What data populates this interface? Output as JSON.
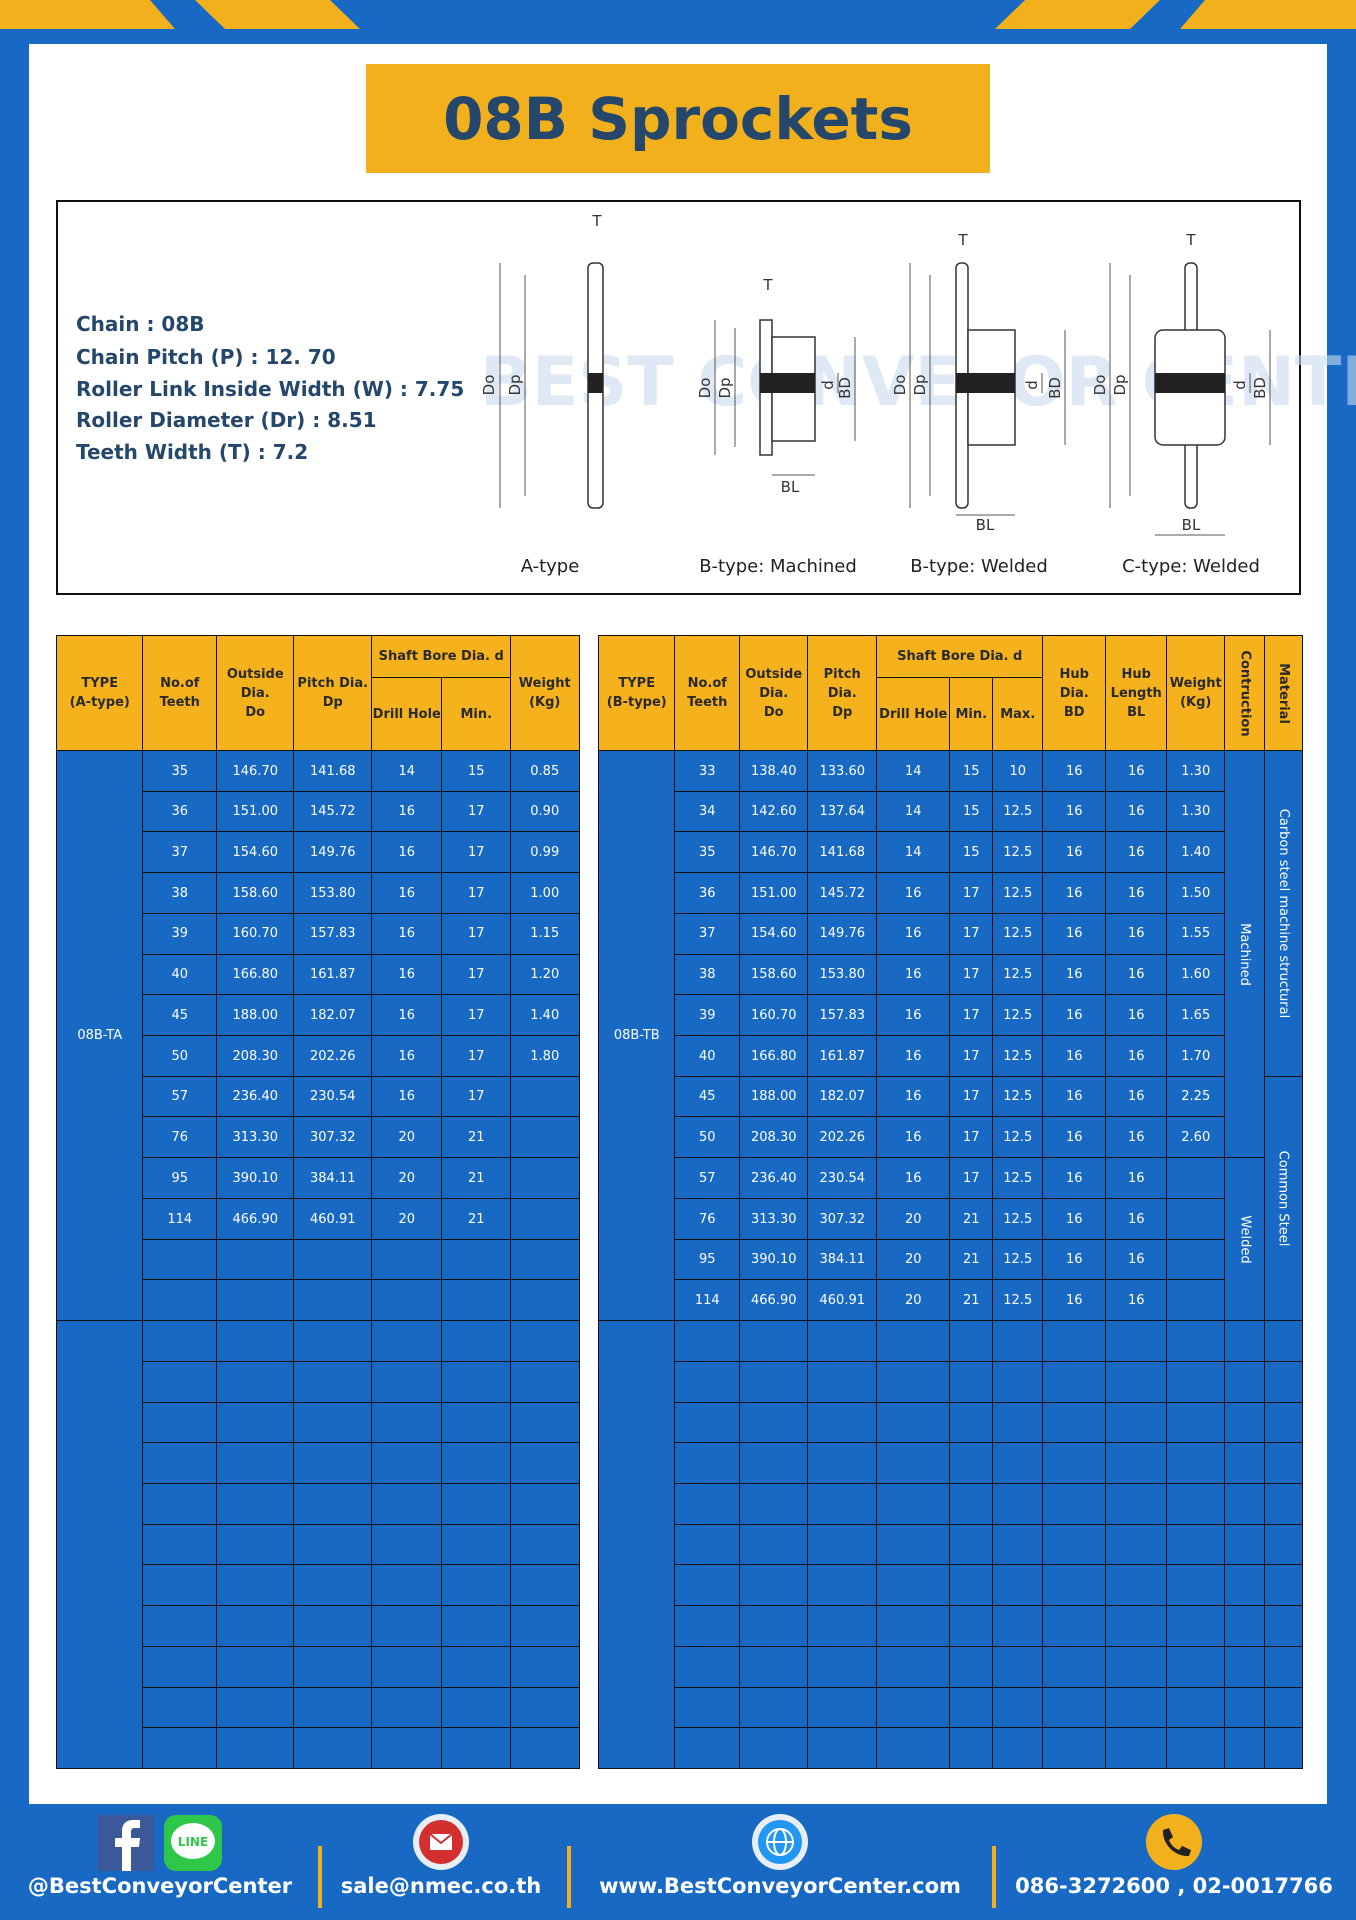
{
  "header": {
    "title": "08B Sprockets"
  },
  "specs": [
    "Chain : 08B",
    "Chain Pitch (P) : 12. 70",
    "Roller Link Inside Width (W) : 7.75",
    "Roller Diameter (Dr) : 8.51",
    "Teeth Width (T) : 7.2"
  ],
  "diagram": {
    "watermark": "BEST CONVEYOR CENTER",
    "dimensions": [
      "T",
      "Do",
      "Dp",
      "d",
      "BD",
      "BL"
    ],
    "captions": [
      "A-type",
      "B-type: Machined",
      "B-type: Welded",
      "C-type: Welded"
    ]
  },
  "table_a": {
    "headers": [
      "TYPE\n(A-type)",
      "No.of\nTeeth",
      "Outside\nDia.\nDo",
      "Pitch Dia.\nDp",
      "Shaft Bore Dia. d",
      "Drill Hole",
      "Min.",
      "Weight\n(Kg)"
    ],
    "type": "08B-TA",
    "rows": [
      [
        "35",
        "146.70",
        "141.68",
        "14",
        "15",
        "0.85"
      ],
      [
        "36",
        "151.00",
        "145.72",
        "16",
        "17",
        "0.90"
      ],
      [
        "37",
        "154.60",
        "149.76",
        "16",
        "17",
        "0.99"
      ],
      [
        "38",
        "158.60",
        "153.80",
        "16",
        "17",
        "1.00"
      ],
      [
        "39",
        "160.70",
        "157.83",
        "16",
        "17",
        "1.15"
      ],
      [
        "40",
        "166.80",
        "161.87",
        "16",
        "17",
        "1.20"
      ],
      [
        "45",
        "188.00",
        "182.07",
        "16",
        "17",
        "1.40"
      ],
      [
        "50",
        "208.30",
        "202.26",
        "16",
        "17",
        "1.80"
      ],
      [
        "57",
        "236.40",
        "230.54",
        "16",
        "17",
        null
      ],
      [
        "76",
        "313.30",
        "307.32",
        "20",
        "21",
        null
      ],
      [
        "95",
        "390.10",
        "384.11",
        "20",
        "21",
        null
      ],
      [
        "114",
        "466.90",
        "460.91",
        "20",
        "21",
        null
      ]
    ]
  },
  "table_b": {
    "headers": [
      "TYPE\n(B-type)",
      "No.of\nTeeth",
      "Outside\nDia.\nDo",
      "Pitch Dia.\nDp",
      "Shaft Bore Dia. d",
      "Drill Hole",
      "Min.",
      "Max.",
      "Hub Dia.\nBD",
      "Hub\nLength\nBL",
      "Weight\n(Kg)",
      "Contruction",
      "Material"
    ],
    "type": "08B-TB",
    "rows": [
      [
        "33",
        "138.40",
        "133.60",
        "14",
        "15",
        "10",
        "16",
        "16",
        "1.30"
      ],
      [
        "34",
        "142.60",
        "137.64",
        "14",
        "15",
        "12.5",
        "16",
        "16",
        "1.30"
      ],
      [
        "35",
        "146.70",
        "141.68",
        "14",
        "15",
        "12.5",
        "16",
        "16",
        "1.40"
      ],
      [
        "36",
        "151.00",
        "145.72",
        "16",
        "17",
        "12.5",
        "16",
        "16",
        "1.50"
      ],
      [
        "37",
        "154.60",
        "149.76",
        "16",
        "17",
        "12.5",
        "16",
        "16",
        "1.55"
      ],
      [
        "38",
        "158.60",
        "153.80",
        "16",
        "17",
        "12.5",
        "16",
        "16",
        "1.60"
      ],
      [
        "39",
        "160.70",
        "157.83",
        "16",
        "17",
        "12.5",
        "16",
        "16",
        "1.65"
      ],
      [
        "40",
        "166.80",
        "161.87",
        "16",
        "17",
        "12.5",
        "16",
        "16",
        "1.70"
      ],
      [
        "45",
        "188.00",
        "182.07",
        "16",
        "17",
        "12.5",
        "16",
        "16",
        "2.25"
      ],
      [
        "50",
        "208.30",
        "202.26",
        "16",
        "17",
        "12.5",
        "16",
        "16",
        "2.60"
      ],
      [
        "57",
        "236.40",
        "230.54",
        "16",
        "17",
        "12.5",
        "16",
        "16",
        null
      ],
      [
        "76",
        "313.30",
        "307.32",
        "20",
        "21",
        "12.5",
        "16",
        "16",
        null
      ],
      [
        "95",
        "390.10",
        "384.11",
        "20",
        "21",
        "12.5",
        "16",
        "16",
        null
      ],
      [
        "114",
        "466.90",
        "460.91",
        "20",
        "21",
        "12.5",
        "16",
        "16",
        null
      ]
    ],
    "construction": [
      "Machined",
      "Machined",
      "Machined",
      "Machined",
      "Machined",
      "Machined",
      "Machined",
      "Machined",
      "Machined",
      "Machined",
      "Welded",
      "Welded",
      "Welded",
      "Welded"
    ],
    "material": [
      "Carbon steel  machine structural",
      "Carbon steel  machine structural",
      "Carbon steel  machine structural",
      "Carbon steel  machine structural",
      "Carbon steel  machine structural",
      "Carbon steel  machine structural",
      "Carbon steel  machine structural",
      "Carbon steel  machine structural",
      "Common  Steel",
      "Common  Steel",
      "Common  Steel",
      "Common  Steel",
      "Common  Steel",
      "Common  Steel"
    ]
  },
  "footer": {
    "line_icon": "LINE",
    "items": [
      "@BestConveyorCenter",
      "sale@nmec.co.th",
      "www.BestConveyorCenter.com",
      "086-3272600 , 02-0017766"
    ]
  }
}
